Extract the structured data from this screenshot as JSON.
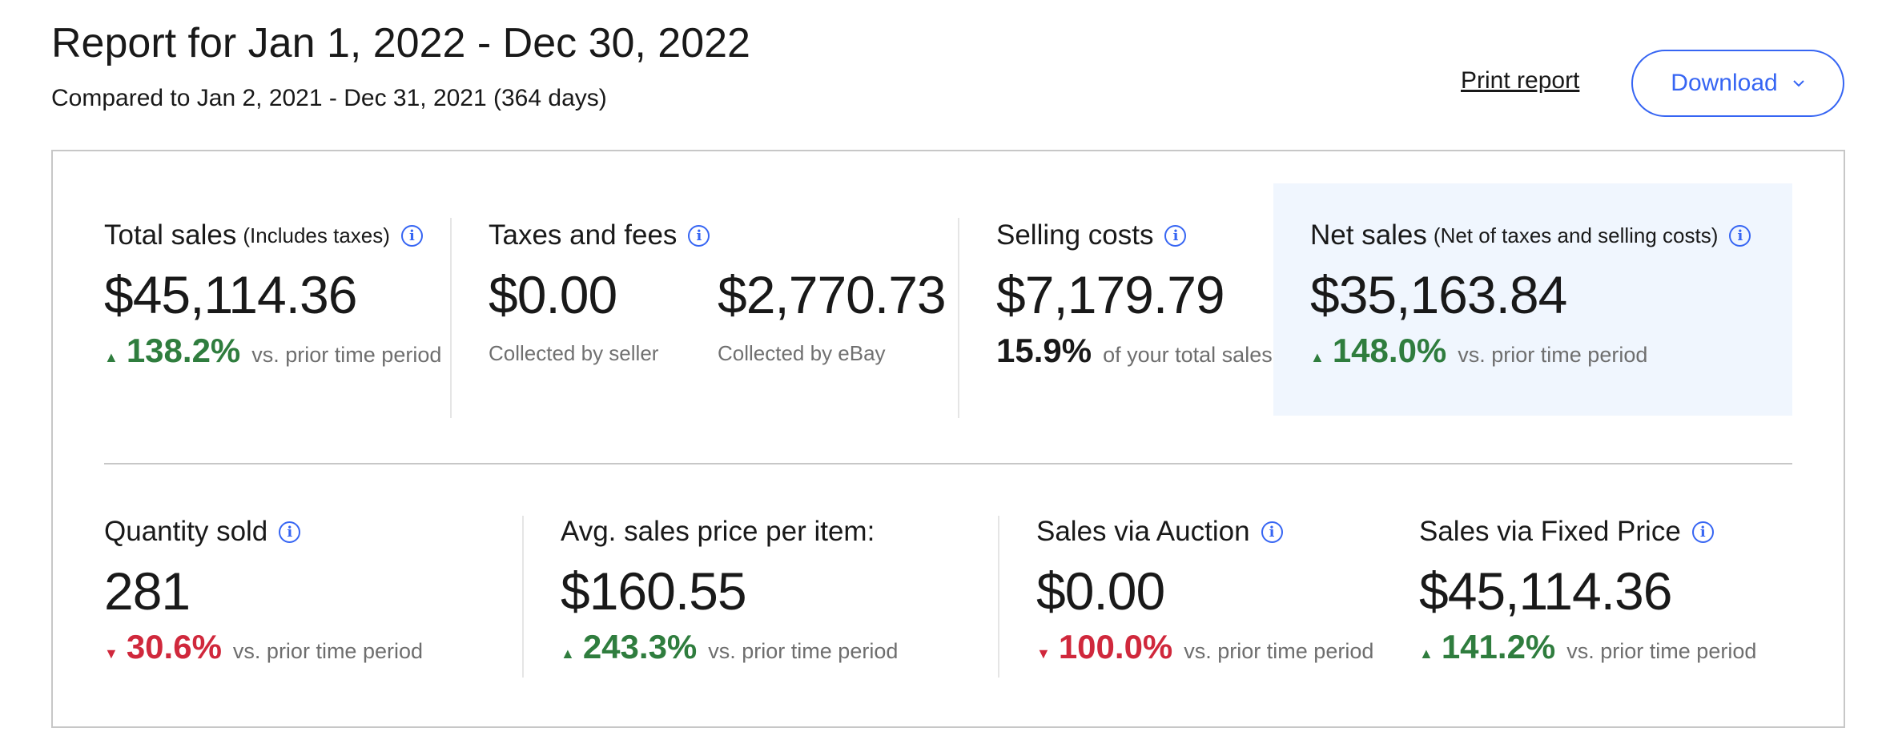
{
  "header": {
    "title": "Report for Jan 1, 2022 - Dec 30, 2022",
    "subtitle": "Compared to Jan 2, 2021 - Dec 31, 2021 (364 days)",
    "print_label": "Print report",
    "download_label": "Download"
  },
  "icons": {
    "info": "info-circle-icon",
    "chevron": "chevron-down-icon",
    "up": "triangle-up-icon",
    "down": "triangle-down-icon"
  },
  "colors": {
    "accent": "#3665f3",
    "positive": "#2f7d3e",
    "negative": "#d0283c",
    "highlight_bg": "#f0f6fe"
  },
  "vs_text": "vs. prior time period",
  "top_metrics": {
    "total_sales": {
      "label": "Total sales",
      "note": "(Includes taxes)",
      "value": "$45,114.36",
      "change": "138.2%",
      "direction": "up"
    },
    "taxes_fees": {
      "label": "Taxes and fees",
      "seller_value": "$0.00",
      "seller_caption": "Collected by seller",
      "ebay_value": "$2,770.73",
      "ebay_caption": "Collected by eBay"
    },
    "selling_costs": {
      "label": "Selling costs",
      "value": "$7,179.79",
      "share": "15.9%",
      "share_caption": "of your total sales"
    },
    "net_sales": {
      "label": "Net sales",
      "note": "(Net of taxes and selling costs)",
      "value": "$35,163.84",
      "change": "148.0%",
      "direction": "up"
    }
  },
  "bottom_metrics": {
    "quantity_sold": {
      "label": "Quantity sold",
      "value": "281",
      "change": "30.6%",
      "direction": "down"
    },
    "avg_price": {
      "label": "Avg. sales price per item:",
      "value": "$160.55",
      "change": "243.3%",
      "direction": "up"
    },
    "auction": {
      "label": "Sales via Auction",
      "value": "$0.00",
      "change": "100.0%",
      "direction": "down"
    },
    "fixed_price": {
      "label": "Sales via Fixed Price",
      "value": "$45,114.36",
      "change": "141.2%",
      "direction": "up"
    }
  }
}
